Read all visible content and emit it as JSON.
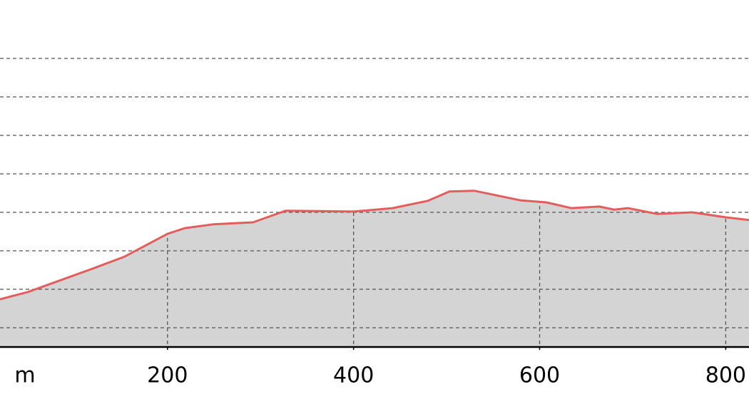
{
  "chart_data": {
    "type": "area",
    "x_label": "m",
    "x": [
      20,
      50,
      81,
      120,
      154,
      200,
      219,
      250,
      292,
      327,
      400,
      442,
      480,
      503,
      530,
      580,
      607,
      634,
      664,
      680,
      695,
      726,
      764,
      800,
      825
    ],
    "series": [
      {
        "color": "#e35d5d",
        "fill": "#d4d4d4",
        "values": [
          1.24,
          1.43,
          1.7,
          2.04,
          2.35,
          2.94,
          3.09,
          3.19,
          3.24,
          3.54,
          3.52,
          3.61,
          3.8,
          4.04,
          4.06,
          3.81,
          3.76,
          3.61,
          3.65,
          3.57,
          3.61,
          3.46,
          3.5,
          3.37,
          3.3
        ]
      }
    ],
    "xlim": [
      20,
      825
    ],
    "xticks": [
      200,
      400,
      600,
      800
    ],
    "ylim": [
      0,
      9
    ],
    "ygrid": [
      0.5,
      1.5,
      2.5,
      3.5,
      4.5,
      5.5,
      6.5,
      7.5
    ],
    "grid": true
  }
}
